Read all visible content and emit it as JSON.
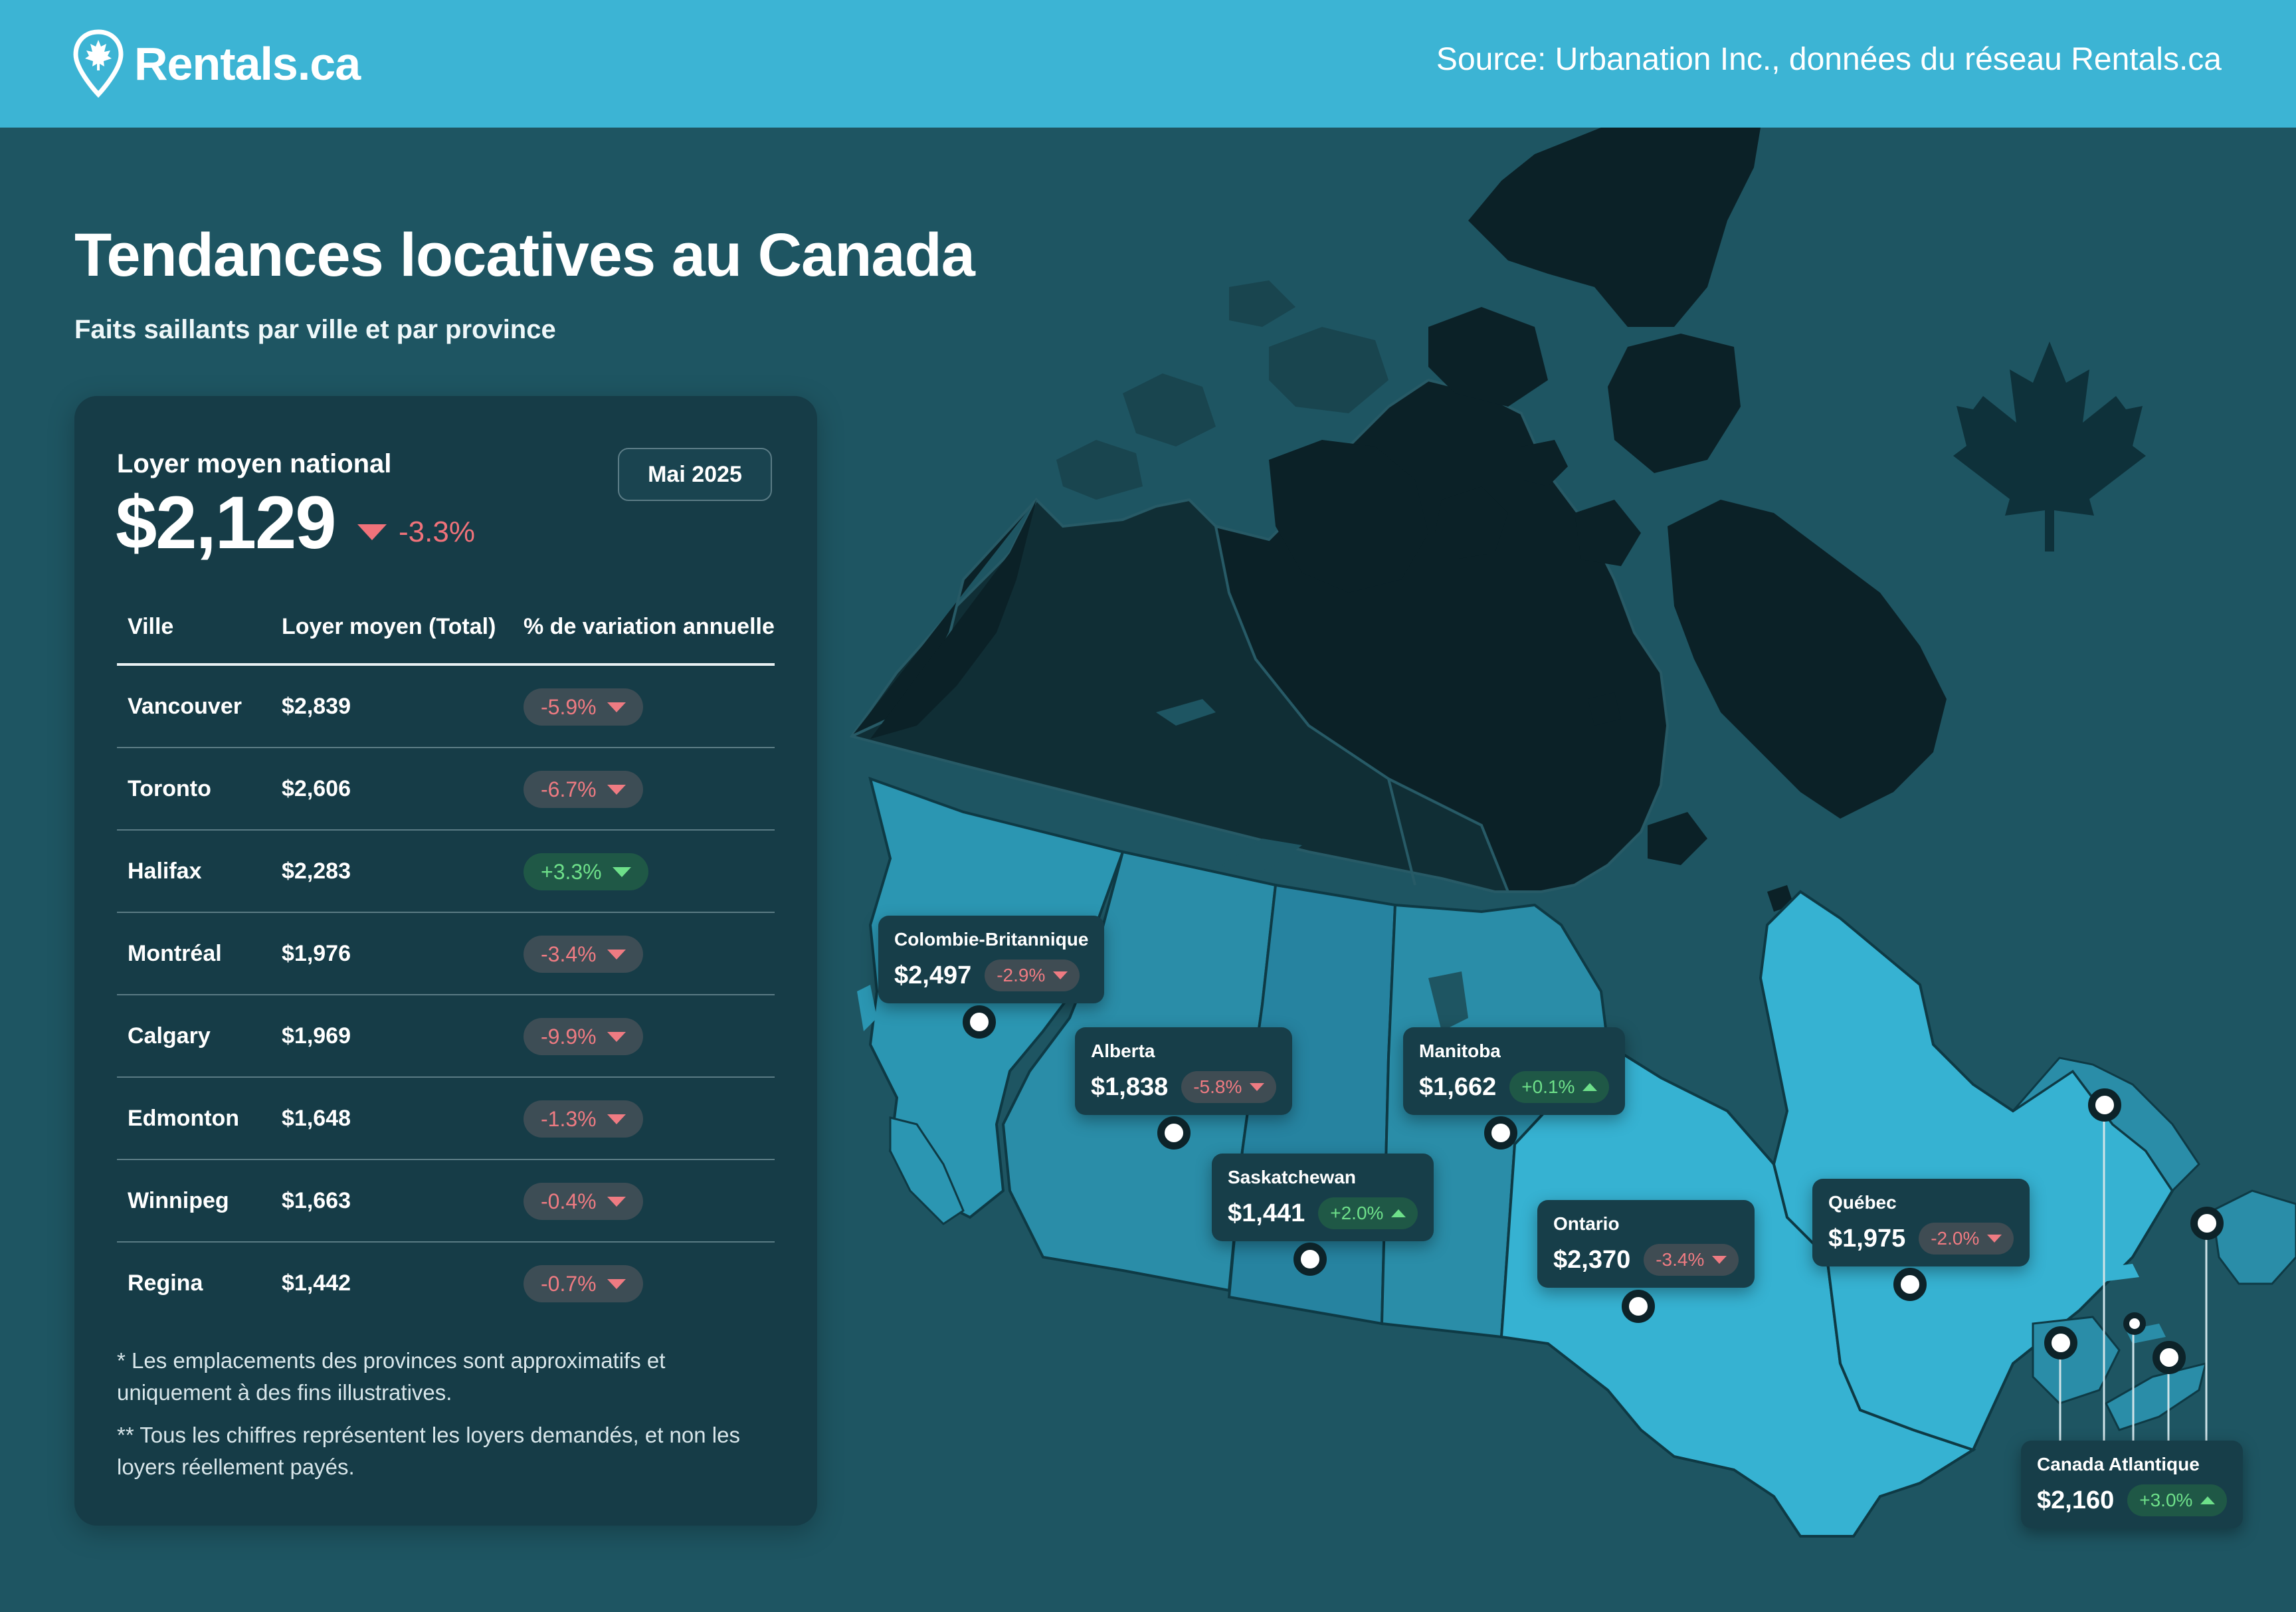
{
  "header": {
    "brand": "Rentals.ca",
    "source": "Source: Urbanation Inc., données du réseau Rentals.ca"
  },
  "title": "Tendances locatives au Canada",
  "subtitle": "Faits saillants par ville et par province",
  "panel": {
    "national_label": "Loyer moyen national",
    "national_value": "$2,129",
    "national_change": "-3.3%",
    "date": "Mai 2025",
    "columns": [
      "Ville",
      "Loyer moyen (Total)",
      "% de variation annuelle"
    ],
    "rows": [
      {
        "city": "Vancouver",
        "rent": "$2,839",
        "change": "-5.9%",
        "trend": "neg"
      },
      {
        "city": "Toronto",
        "rent": "$2,606",
        "change": "-6.7%",
        "trend": "neg"
      },
      {
        "city": "Halifax",
        "rent": "$2,283",
        "change": "+3.3%",
        "trend": "pos"
      },
      {
        "city": "Montréal",
        "rent": "$1,976",
        "change": "-3.4%",
        "trend": "neg"
      },
      {
        "city": "Calgary",
        "rent": "$1,969",
        "change": "-9.9%",
        "trend": "neg"
      },
      {
        "city": "Edmonton",
        "rent": "$1,648",
        "change": "-1.3%",
        "trend": "neg"
      },
      {
        "city": "Winnipeg",
        "rent": "$1,663",
        "change": "-0.4%",
        "trend": "neg"
      },
      {
        "city": "Regina",
        "rent": "$1,442",
        "change": "-0.7%",
        "trend": "neg"
      }
    ],
    "note1": "* Les emplacements des provinces sont approximatifs et uniquement à des fins illustratives.",
    "note2": "** Tous les chiffres représentent les loyers demandés, et non les loyers réellement payés."
  },
  "provinces": [
    {
      "name": "Colombie-Britannique",
      "value": "$2,497",
      "change": "-2.9%",
      "trend": "neg"
    },
    {
      "name": "Alberta",
      "value": "$1,838",
      "change": "-5.8%",
      "trend": "neg"
    },
    {
      "name": "Saskatchewan",
      "value": "$1,441",
      "change": "+2.0%",
      "trend": "pos"
    },
    {
      "name": "Manitoba",
      "value": "$1,662",
      "change": "+0.1%",
      "trend": "pos"
    },
    {
      "name": "Ontario",
      "value": "$2,370",
      "change": "-3.4%",
      "trend": "neg"
    },
    {
      "name": "Québec",
      "value": "$1,975",
      "change": "-2.0%",
      "trend": "neg"
    },
    {
      "name": "Canada Atlantique",
      "value": "$2,160",
      "change": "+3.0%",
      "trend": "pos"
    }
  ],
  "colors": {
    "background": "#1e5562",
    "header": "#3cb4d4",
    "panel": "#163c47",
    "negative": "#ef7b82",
    "positive": "#6ee08a",
    "north": "#0d252c",
    "south": "#2fa6c6"
  },
  "icons": [
    "map-pin-maple-icon",
    "maple-leaf-icon"
  ]
}
